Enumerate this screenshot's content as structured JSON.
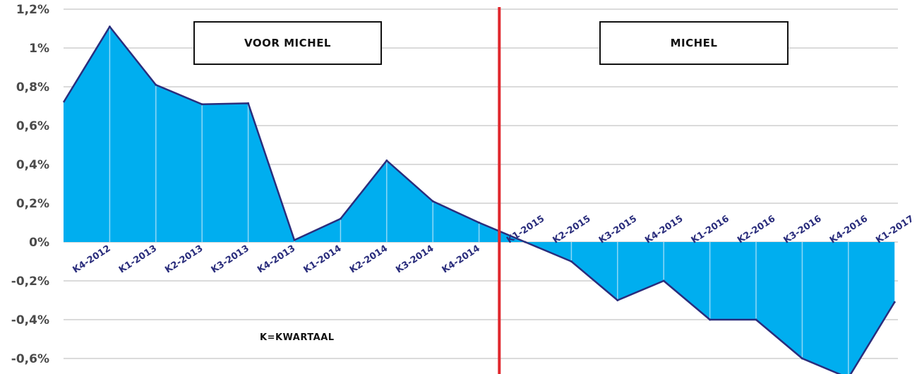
{
  "chart_data": {
    "type": "area",
    "categories": [
      "K4-2012",
      "K1-2013",
      "K2-2013",
      "K3-2013",
      "K4-2013",
      "K1-2014",
      "K2-2014",
      "K3-2014",
      "K4-2014",
      "K1-2015",
      "K2-2015",
      "K3-2015",
      "K4-2015",
      "K1-2016",
      "K2-2016",
      "K3-2016",
      "K4-2016",
      "K1-2017"
    ],
    "x_start_value": 0.72,
    "values": [
      1.11,
      0.81,
      0.71,
      0.715,
      0.01,
      0.12,
      0.42,
      0.21,
      0.1,
      0.0,
      -0.1,
      -0.3,
      -0.2,
      -0.4,
      -0.4,
      -0.6,
      -0.7,
      -0.31
    ],
    "yticks": [
      1.2,
      1.0,
      0.8,
      0.6,
      0.4,
      0.2,
      0.0,
      -0.2,
      -0.4,
      -0.6
    ],
    "ytick_labels": [
      "1,2%",
      "1%",
      "0,8%",
      "0,6%",
      "0,4%",
      "0,2%",
      "0%",
      "-0,2%",
      "-0,4%",
      "-0,6%"
    ],
    "ylim": [
      -0.63,
      1.23
    ],
    "grid": true,
    "divider_after": "K4-2014",
    "region_labels": [
      "VOOR MICHEL",
      "MICHEL"
    ],
    "note": "K=KWARTAAL",
    "colors": {
      "fill": "#00aeef",
      "line": "#2a2d7c",
      "divider": "#e0282e",
      "grid": "#cfcfcf",
      "tick_text": "#2a2d7c"
    }
  }
}
